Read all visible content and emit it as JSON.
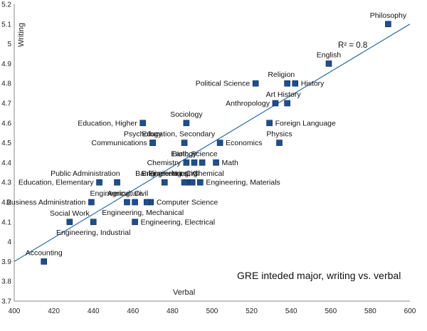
{
  "chart_data": {
    "type": "scatter",
    "title": "GRE inteded major, writing vs. verbal",
    "xlabel": "Verbal",
    "ylabel": "Writing",
    "xlim": [
      400,
      600
    ],
    "ylim": [
      3.7,
      5.2
    ],
    "xticks": [
      "400",
      "420",
      "440",
      "460",
      "480",
      "500",
      "520",
      "540",
      "560",
      "580",
      "600"
    ],
    "yticks": [
      "3.7",
      "3.8",
      "3.9",
      "4",
      "4.1",
      "4.2",
      "4.3",
      "4.4",
      "4.5",
      "4.6",
      "4.7",
      "4.8",
      "4.9",
      "5",
      "5.1",
      "5.2"
    ],
    "trendline": {
      "x": [
        400,
        600
      ],
      "y": [
        3.9,
        5.1
      ]
    },
    "r_squared_label": "R² = 0.8",
    "marker_color": "#1F4E8C",
    "line_color": "#2E6DA4",
    "points": [
      {
        "name": "Philosophy",
        "x": 589,
        "y": 5.1
      },
      {
        "name": "English",
        "x": 559,
        "y": 4.9
      },
      {
        "name": "Religion",
        "x": 538,
        "y": 4.8
      },
      {
        "name": "History",
        "x": 542,
        "y": 4.8
      },
      {
        "name": "Political Science",
        "x": 522,
        "y": 4.8
      },
      {
        "name": "Art History",
        "x": 538,
        "y": 4.7
      },
      {
        "name": "Anthropology",
        "x": 532,
        "y": 4.7
      },
      {
        "name": "Sociology",
        "x": 487,
        "y": 4.6
      },
      {
        "name": "Education, Higher",
        "x": 465,
        "y": 4.6
      },
      {
        "name": "Foreign Language",
        "x": 529,
        "y": 4.6
      },
      {
        "name": "Psychology",
        "x": 470,
        "y": 4.5
      },
      {
        "name": "Education, Secondary",
        "x": 486,
        "y": 4.5
      },
      {
        "name": "Communications",
        "x": 470,
        "y": 4.5
      },
      {
        "name": "Economics",
        "x": 504,
        "y": 4.5
      },
      {
        "name": "Physics",
        "x": 534,
        "y": 4.5
      },
      {
        "name": "Biology",
        "x": 487,
        "y": 4.4
      },
      {
        "name": "Earth Science",
        "x": 491,
        "y": 4.4
      },
      {
        "name": "Chemistry",
        "x": 495,
        "y": 4.4
      },
      {
        "name": "Math",
        "x": 502,
        "y": 4.4
      },
      {
        "name": "Public Administration",
        "x": 452,
        "y": 4.3
      },
      {
        "name": "Education, Elementary",
        "x": 443,
        "y": 4.3
      },
      {
        "name": "Banking",
        "x": 476,
        "y": 4.3
      },
      {
        "name": "Engineering, Civil",
        "x": 487,
        "y": 4.3
      },
      {
        "name": "Nursing",
        "x": 490,
        "y": 4.3
      },
      {
        "name": "Engineering, Chemical",
        "x": 486,
        "y": 4.3
      },
      {
        "name": "Engineering, Materials",
        "x": 494,
        "y": 4.3
      },
      {
        "name": "Agriculture",
        "x": 457,
        "y": 4.2
      },
      {
        "name": "Engineering, Civil",
        "x": 461,
        "y": 4.2
      },
      {
        "name": "Business Administration",
        "x": 439,
        "y": 4.2
      },
      {
        "name": "Computer Science",
        "x": 469,
        "y": 4.2
      },
      {
        "name": "Engineering, Mechanical",
        "x": 467,
        "y": 4.2
      },
      {
        "name": "Social Work",
        "x": 428,
        "y": 4.1
      },
      {
        "name": "Engineering, Industrial",
        "x": 440,
        "y": 4.1
      },
      {
        "name": "Engineering, Electrical",
        "x": 461,
        "y": 4.1
      },
      {
        "name": "Accounting",
        "x": 415,
        "y": 3.9
      }
    ],
    "point_labels": [
      {
        "text": "Philosophy",
        "x": 589,
        "y": 5.1,
        "anchor": "above"
      },
      {
        "text": "English",
        "x": 559,
        "y": 4.9,
        "anchor": "above"
      },
      {
        "text": "Religion",
        "x": 535,
        "y": 4.8,
        "anchor": "above"
      },
      {
        "text": "History",
        "x": 542,
        "y": 4.8,
        "anchor": "right"
      },
      {
        "text": "Political Science",
        "x": 522,
        "y": 4.8,
        "anchor": "left"
      },
      {
        "text": "Art History",
        "x": 536,
        "y": 4.7,
        "anchor": "above"
      },
      {
        "text": "Anthropology",
        "x": 532,
        "y": 4.7,
        "anchor": "left"
      },
      {
        "text": "Sociology",
        "x": 487,
        "y": 4.6,
        "anchor": "above"
      },
      {
        "text": "Education, Higher",
        "x": 465,
        "y": 4.6,
        "anchor": "left"
      },
      {
        "text": "Foreign Language",
        "x": 529,
        "y": 4.6,
        "anchor": "right"
      },
      {
        "text": "Psychology",
        "x": 465,
        "y": 4.5,
        "anchor": "above"
      },
      {
        "text": "Education, Secondary",
        "x": 483,
        "y": 4.5,
        "anchor": "above"
      },
      {
        "text": "Communications",
        "x": 470,
        "y": 4.5,
        "anchor": "left"
      },
      {
        "text": "Economics",
        "x": 504,
        "y": 4.5,
        "anchor": "right"
      },
      {
        "text": "Physics",
        "x": 534,
        "y": 4.5,
        "anchor": "above"
      },
      {
        "text": "Biology",
        "x": 486,
        "y": 4.4,
        "anchor": "above"
      },
      {
        "text": "Earth Science",
        "x": 491,
        "y": 4.4,
        "anchor": "above"
      },
      {
        "text": "Chemistry",
        "x": 487,
        "y": 4.4,
        "anchor": "left"
      },
      {
        "text": "Math",
        "x": 502,
        "y": 4.4,
        "anchor": "right"
      },
      {
        "text": "Public Administration",
        "x": 452,
        "y": 4.3,
        "anchor": "above-left"
      },
      {
        "text": "Education, Elementary",
        "x": 443,
        "y": 4.3,
        "anchor": "left"
      },
      {
        "text": "Banking",
        "x": 468,
        "y": 4.3,
        "anchor": "above"
      },
      {
        "text": "Engineering, Civil",
        "x": 479,
        "y": 4.3,
        "anchor": "above"
      },
      {
        "text": "Nursing",
        "x": 486,
        "y": 4.3,
        "anchor": "above"
      },
      {
        "text": "Engineering, Chemical",
        "x": 487,
        "y": 4.3,
        "anchor": "above"
      },
      {
        "text": "Engineering, Materials",
        "x": 494,
        "y": 4.3,
        "anchor": "right"
      },
      {
        "text": "Agriculture",
        "x": 456,
        "y": 4.2,
        "anchor": "above"
      },
      {
        "text": "Engineering, Civil",
        "x": 453,
        "y": 4.2,
        "anchor": "above"
      },
      {
        "text": "Business Administration",
        "x": 439,
        "y": 4.2,
        "anchor": "left"
      },
      {
        "text": "Computer Science",
        "x": 469,
        "y": 4.2,
        "anchor": "right"
      },
      {
        "text": "Engineering, Mechanical",
        "x": 465,
        "y": 4.2,
        "anchor": "below"
      },
      {
        "text": "Social Work",
        "x": 428,
        "y": 4.1,
        "anchor": "above"
      },
      {
        "text": "Engineering, Industrial",
        "x": 440,
        "y": 4.1,
        "anchor": "below"
      },
      {
        "text": "Engineering, Electrical",
        "x": 461,
        "y": 4.1,
        "anchor": "right"
      },
      {
        "text": "Accounting",
        "x": 415,
        "y": 3.9,
        "anchor": "above"
      }
    ]
  }
}
